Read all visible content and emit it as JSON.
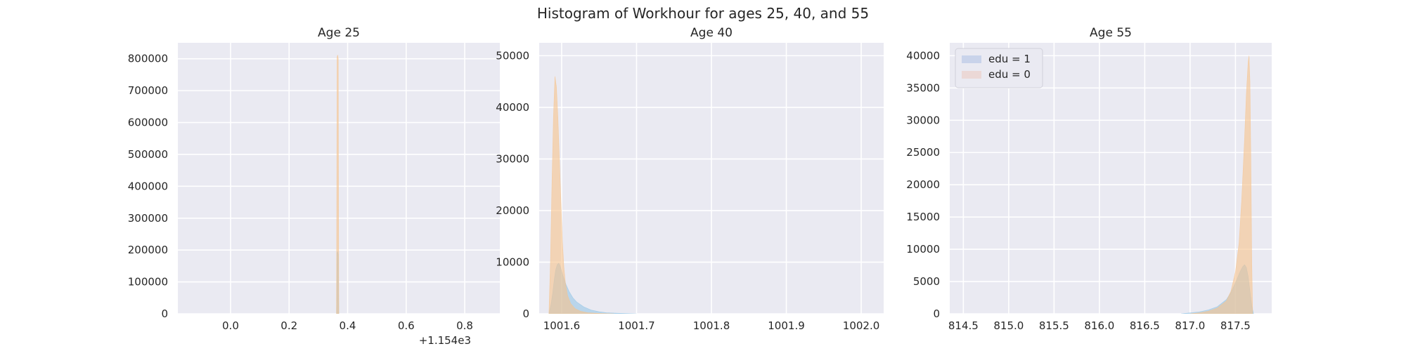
{
  "figure": {
    "title": "Histogram of Workhour for ages 25, 40, and 55"
  },
  "colors": {
    "axes_bg": "#EAEAF2",
    "grid": "#FFFFFF",
    "edu1": "#8FC3E6",
    "edu0": "#F6C38C",
    "legend_edu1": "#C9D3EA",
    "legend_edu0": "#EBD8D6"
  },
  "legend": {
    "location": "upper-left of Age 55 panel",
    "entries": [
      "edu = 1",
      "edu = 0"
    ]
  },
  "chart_data": [
    {
      "type": "area",
      "title": "Age 25",
      "xlabel": "",
      "ylabel": "",
      "x_offset_label": "+1.154e3",
      "xlim": [
        -0.18,
        0.92
      ],
      "ylim": [
        0,
        850000
      ],
      "xticks": [
        0.0,
        0.2,
        0.4,
        0.6,
        0.8
      ],
      "xtick_labels": [
        "0.0",
        "0.2",
        "0.4",
        "0.6",
        "0.8"
      ],
      "yticks": [
        0,
        100000,
        200000,
        300000,
        400000,
        500000,
        600000,
        700000,
        800000
      ],
      "ytick_labels": [
        "0",
        "100000",
        "200000",
        "300000",
        "400000",
        "500000",
        "600000",
        "700000",
        "800000"
      ],
      "grid": true,
      "series": [
        {
          "name": "edu = 1",
          "x": [
            0.362,
            0.364,
            0.366,
            0.368,
            0.37
          ],
          "y": [
            0,
            190000,
            195000,
            185000,
            0
          ]
        },
        {
          "name": "edu = 0",
          "x": [
            0.362,
            0.364,
            0.366,
            0.368,
            0.37
          ],
          "y": [
            0,
            805000,
            812000,
            800000,
            0
          ]
        }
      ]
    },
    {
      "type": "area",
      "title": "Age 40",
      "xlabel": "",
      "ylabel": "",
      "xlim": [
        1001.57,
        1002.03
      ],
      "ylim": [
        0,
        52500
      ],
      "xticks": [
        1001.6,
        1001.7,
        1001.8,
        1001.9,
        1002.0
      ],
      "xtick_labels": [
        "1001.6",
        "1001.7",
        "1001.8",
        "1001.9",
        "1002.0"
      ],
      "yticks": [
        0,
        10000,
        20000,
        30000,
        40000,
        50000
      ],
      "ytick_labels": [
        "0",
        "10000",
        "20000",
        "30000",
        "40000",
        "50000"
      ],
      "grid": true,
      "series": [
        {
          "name": "edu = 1",
          "x": [
            1001.583,
            1001.586,
            1001.588,
            1001.59,
            1001.592,
            1001.594,
            1001.596,
            1001.598,
            1001.6,
            1001.603,
            1001.606,
            1001.61,
            1001.615,
            1001.62,
            1001.63,
            1001.64,
            1001.65,
            1001.66,
            1001.68,
            1001.7
          ],
          "y": [
            0,
            2000,
            4000,
            6500,
            8500,
            9500,
            9800,
            9300,
            8200,
            6800,
            5600,
            4300,
            3100,
            2300,
            1300,
            700,
            400,
            200,
            80,
            0
          ]
        },
        {
          "name": "edu = 0",
          "x": [
            1001.583,
            1001.585,
            1001.587,
            1001.589,
            1001.591,
            1001.593,
            1001.595,
            1001.597,
            1001.599,
            1001.601,
            1001.603,
            1001.605,
            1001.608,
            1001.612,
            1001.618,
            1001.625,
            1001.635,
            1001.65,
            1001.67
          ],
          "y": [
            0,
            10000,
            25000,
            38000,
            46000,
            44000,
            38000,
            30000,
            22000,
            14000,
            9000,
            6000,
            3500,
            2000,
            1000,
            500,
            200,
            80,
            0
          ]
        }
      ]
    },
    {
      "type": "area",
      "title": "Age 55",
      "xlabel": "",
      "ylabel": "",
      "xlim": [
        814.35,
        817.9
      ],
      "ylim": [
        0,
        42000
      ],
      "xticks": [
        814.5,
        815.0,
        815.5,
        816.0,
        816.5,
        817.0,
        817.5
      ],
      "xtick_labels": [
        "814.5",
        "815.0",
        "815.5",
        "816.0",
        "816.5",
        "817.0",
        "817.5"
      ],
      "yticks": [
        0,
        5000,
        10000,
        15000,
        20000,
        25000,
        30000,
        35000,
        40000
      ],
      "ytick_labels": [
        "0",
        "5000",
        "10000",
        "15000",
        "20000",
        "25000",
        "30000",
        "35000",
        "40000"
      ],
      "grid": true,
      "series": [
        {
          "name": "edu = 1",
          "x": [
            816.9,
            817.0,
            817.1,
            817.2,
            817.3,
            817.4,
            817.45,
            817.5,
            817.55,
            817.58,
            817.6,
            817.62,
            817.64,
            817.66,
            817.68,
            817.7
          ],
          "y": [
            0,
            150,
            300,
            600,
            1100,
            2200,
            3300,
            4800,
            6500,
            7300,
            7600,
            7200,
            5800,
            3500,
            1200,
            0
          ]
        },
        {
          "name": "edu = 0",
          "x": [
            817.0,
            817.1,
            817.2,
            817.3,
            817.4,
            817.45,
            817.5,
            817.54,
            817.57,
            817.6,
            817.62,
            817.64,
            817.65,
            817.66,
            817.67,
            817.68,
            817.69
          ],
          "y": [
            0,
            150,
            400,
            900,
            2000,
            3500,
            6500,
            11000,
            18000,
            27000,
            34000,
            39000,
            40000,
            36000,
            24000,
            8000,
            0
          ]
        }
      ]
    }
  ]
}
